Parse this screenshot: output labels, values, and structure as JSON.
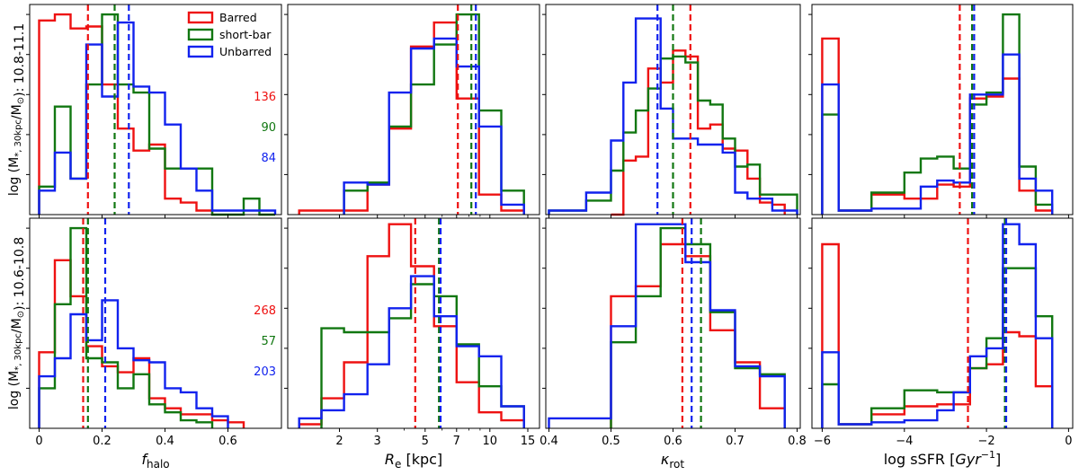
{
  "colors": {
    "barred": "#ee1111",
    "shortbar": "#117711",
    "unbarred": "#1122ee"
  },
  "legend": [
    {
      "key": "barred",
      "label": "Barred"
    },
    {
      "key": "shortbar",
      "label": "short-bar"
    },
    {
      "key": "unbarred",
      "label": "Unbarred"
    }
  ],
  "row_labels": [
    {
      "prefix": "log (M",
      "sub": "*, 30kpc",
      "mid": "/M",
      "sun": "⊙",
      "suffix": "): 10.8-11.1"
    },
    {
      "prefix": "log (M",
      "sub": "*, 30kpc",
      "mid": "/M",
      "sun": "⊙",
      "suffix": "): 10.6-10.8"
    }
  ],
  "column_xlabels": [
    {
      "main": "f",
      "sub": "halo",
      "rest": ""
    },
    {
      "main": "R",
      "sub": "e",
      "rest": " [kpc]"
    },
    {
      "main": "κ",
      "sub": "rot",
      "rest": ""
    },
    {
      "main": "log sSFR [",
      "italic": "Gyr",
      "sup": "−1",
      "rest": "]"
    }
  ],
  "chart_data": [
    {
      "type": "histogram",
      "row": 0,
      "col": 0,
      "xscale": "linear",
      "xlim": [
        -0.03,
        0.77
      ],
      "ylim": [
        0,
        1.05
      ],
      "counts": {
        "barred": "136",
        "shortbar": "90",
        "unbarred": "84"
      },
      "series": [
        {
          "key": "barred",
          "edges": [
            0,
            0.05,
            0.1,
            0.15,
            0.2,
            0.25,
            0.3,
            0.35,
            0.4,
            0.45,
            0.5,
            0.55
          ],
          "values": [
            0.97,
            1.0,
            0.93,
            0.94,
            0.65,
            0.43,
            0.32,
            0.35,
            0.08,
            0.06,
            0.02
          ],
          "median": 0.155
        },
        {
          "key": "shortbar",
          "edges": [
            0,
            0.05,
            0.1,
            0.15,
            0.2,
            0.25,
            0.3,
            0.35,
            0.4,
            0.45,
            0.5,
            0.55,
            0.6,
            0.65,
            0.7,
            0.75
          ],
          "values": [
            0.14,
            0.54,
            0.18,
            0.65,
            1.0,
            0.65,
            0.61,
            0.33,
            0.23,
            0.23,
            0.23,
            0.0,
            0.0,
            0.08,
            0.0
          ],
          "median": 0.24
        },
        {
          "key": "unbarred",
          "edges": [
            0,
            0.05,
            0.1,
            0.15,
            0.2,
            0.25,
            0.3,
            0.35,
            0.4,
            0.45,
            0.5,
            0.55,
            0.6,
            0.65,
            0.7,
            0.75
          ],
          "values": [
            0.12,
            0.31,
            0.18,
            0.85,
            0.59,
            0.96,
            0.64,
            0.61,
            0.45,
            0.23,
            0.12,
            0.02,
            0.02,
            0.02,
            0.02
          ],
          "median": 0.285
        }
      ]
    },
    {
      "type": "histogram",
      "row": 0,
      "col": 1,
      "xscale": "log",
      "xlim": [
        1.15,
        17
      ],
      "series": [
        {
          "key": "barred",
          "edges": [
            1.3,
            1.65,
            2.1,
            2.7,
            3.4,
            4.3,
            5.5,
            7.0,
            8.9,
            11.3,
            14.4
          ],
          "values": [
            0.02,
            0.02,
            0.02,
            0.15,
            0.43,
            0.84,
            0.96,
            0.58,
            0.1,
            0.02
          ],
          "median": 7.1
        },
        {
          "key": "shortbar",
          "edges": [
            2.1,
            2.7,
            3.4,
            4.3,
            5.5,
            7.0,
            8.9,
            11.3,
            14.4
          ],
          "values": [
            0.12,
            0.16,
            0.44,
            0.65,
            0.85,
            1.0,
            0.52,
            0.12
          ],
          "median": 8.2
        },
        {
          "key": "unbarred",
          "edges": [
            2.1,
            2.7,
            3.4,
            4.3,
            5.5,
            7.0,
            8.9,
            11.3,
            14.4
          ],
          "values": [
            0.16,
            0.15,
            0.61,
            0.83,
            0.88,
            0.74,
            0.44,
            0.05
          ],
          "median": 8.6
        }
      ]
    },
    {
      "type": "histogram",
      "row": 0,
      "col": 2,
      "xlim": [
        0.395,
        0.805
      ],
      "series": [
        {
          "key": "barred",
          "edges": [
            0.5,
            0.52,
            0.54,
            0.56,
            0.58,
            0.6,
            0.62,
            0.64,
            0.66,
            0.68,
            0.7,
            0.72,
            0.74,
            0.76,
            0.78
          ],
          "values": [
            0.0,
            0.27,
            0.29,
            0.73,
            0.66,
            0.82,
            0.79,
            0.43,
            0.45,
            0.33,
            0.32,
            0.18,
            0.06,
            0.05
          ],
          "median": 0.628
        },
        {
          "key": "shortbar",
          "edges": [
            0.4,
            0.42,
            0.44,
            0.46,
            0.48,
            0.5,
            0.52,
            0.54,
            0.56,
            0.58,
            0.6,
            0.62,
            0.64,
            0.66,
            0.68,
            0.7,
            0.72,
            0.74,
            0.76,
            0.78,
            0.8
          ],
          "values": [
            0.02,
            0.02,
            0.02,
            0.07,
            0.07,
            0.22,
            0.41,
            0.52,
            0.63,
            0.78,
            0.79,
            0.76,
            0.57,
            0.55,
            0.38,
            0.24,
            0.25,
            0.1,
            0.1,
            0.1
          ],
          "median": 0.6
        },
        {
          "key": "unbarred",
          "edges": [
            0.4,
            0.42,
            0.44,
            0.46,
            0.48,
            0.5,
            0.52,
            0.54,
            0.56,
            0.58,
            0.6,
            0.62,
            0.64,
            0.66,
            0.68,
            0.7,
            0.72,
            0.74,
            0.76,
            0.78,
            0.8
          ],
          "values": [
            0.02,
            0.02,
            0.02,
            0.11,
            0.11,
            0.37,
            0.66,
            0.98,
            0.98,
            0.53,
            0.38,
            0.38,
            0.35,
            0.35,
            0.31,
            0.11,
            0.08,
            0.08,
            0.02,
            0.02
          ],
          "median": 0.575
        }
      ]
    },
    {
      "type": "histogram",
      "row": 0,
      "col": 3,
      "xlim": [
        -6.25,
        0.1
      ],
      "series": [
        {
          "key": "barred",
          "edges": [
            -6.0,
            -5.6,
            -5.2,
            -4.8,
            -4.4,
            -4.0,
            -3.6,
            -3.2,
            -2.8,
            -2.4,
            -2.0,
            -1.6,
            -1.2,
            -0.8,
            -0.4
          ],
          "values": [
            0.88,
            0.02,
            0.02,
            0.1,
            0.1,
            0.08,
            0.08,
            0.15,
            0.14,
            0.58,
            0.59,
            0.68,
            0.12,
            0.02
          ],
          "median": -2.65
        },
        {
          "key": "shortbar",
          "edges": [
            -6.0,
            -5.6,
            -5.2,
            -4.8,
            -4.4,
            -4.0,
            -3.6,
            -3.2,
            -2.8,
            -2.4,
            -2.0,
            -1.6,
            -1.2,
            -0.8,
            -0.4
          ],
          "values": [
            0.5,
            0.02,
            0.02,
            0.11,
            0.11,
            0.21,
            0.28,
            0.29,
            0.23,
            0.55,
            0.61,
            1.0,
            0.24,
            0.05
          ],
          "median": -2.35
        },
        {
          "key": "unbarred",
          "edges": [
            -6.0,
            -5.6,
            -5.2,
            -4.8,
            -4.4,
            -4.0,
            -3.6,
            -3.2,
            -2.8,
            -2.4,
            -2.0,
            -1.6,
            -1.2,
            -0.8,
            -0.4
          ],
          "values": [
            0.65,
            0.02,
            0.02,
            0.03,
            0.03,
            0.03,
            0.14,
            0.17,
            0.16,
            0.6,
            0.6,
            0.8,
            0.18,
            0.12
          ],
          "median": -2.3
        }
      ]
    },
    {
      "type": "histogram",
      "row": 1,
      "col": 0,
      "xlim": [
        -0.03,
        0.77
      ],
      "ticks": [
        0.0,
        0.2,
        0.4,
        0.6
      ],
      "counts": {
        "barred": "268",
        "shortbar": "57",
        "unbarred": "203"
      },
      "series": [
        {
          "key": "barred",
          "edges": [
            0,
            0.05,
            0.1,
            0.15,
            0.2,
            0.25,
            0.3,
            0.35,
            0.4,
            0.45,
            0.5,
            0.55,
            0.6,
            0.65
          ],
          "values": [
            0.38,
            0.84,
            0.66,
            0.41,
            0.31,
            0.28,
            0.35,
            0.15,
            0.1,
            0.07,
            0.07,
            0.04,
            0.03
          ],
          "median": 0.14
        },
        {
          "key": "shortbar",
          "edges": [
            0,
            0.05,
            0.1,
            0.15,
            0.2,
            0.25,
            0.3,
            0.35,
            0.4,
            0.45,
            0.5,
            0.55
          ],
          "values": [
            0.2,
            0.62,
            1.0,
            0.35,
            0.33,
            0.2,
            0.27,
            0.12,
            0.08,
            0.04,
            0.03
          ],
          "median": 0.155
        },
        {
          "key": "unbarred",
          "edges": [
            0,
            0.05,
            0.1,
            0.15,
            0.2,
            0.25,
            0.3,
            0.35,
            0.4,
            0.45,
            0.5,
            0.55,
            0.6
          ],
          "values": [
            0.26,
            0.35,
            0.57,
            0.44,
            0.64,
            0.4,
            0.34,
            0.33,
            0.2,
            0.18,
            0.1,
            0.06
          ],
          "median": 0.21
        }
      ]
    },
    {
      "type": "histogram",
      "row": 1,
      "col": 1,
      "xscale": "log",
      "xlim": [
        1.15,
        17
      ],
      "ticks": [
        2,
        3,
        5,
        7,
        10,
        15
      ],
      "series": [
        {
          "key": "barred",
          "edges": [
            1.3,
            1.65,
            2.1,
            2.7,
            3.4,
            4.3,
            5.5,
            7.0,
            8.9,
            11.3,
            14.4
          ],
          "values": [
            0.02,
            0.15,
            0.33,
            0.86,
            1.02,
            0.81,
            0.51,
            0.23,
            0.08,
            0.04
          ],
          "median": 4.5
        },
        {
          "key": "shortbar",
          "edges": [
            1.65,
            2.1,
            2.7,
            3.4,
            4.3,
            5.5,
            7.0,
            8.9,
            11.3,
            14.4
          ],
          "values": [
            0.5,
            0.48,
            0.48,
            0.55,
            0.72,
            0.66,
            0.42,
            0.21,
            0.11
          ],
          "median": 5.8
        },
        {
          "key": "unbarred",
          "edges": [
            1.3,
            1.65,
            2.1,
            2.7,
            3.4,
            4.3,
            5.5,
            7.0,
            8.9,
            11.3,
            14.4
          ],
          "values": [
            0.05,
            0.09,
            0.17,
            0.32,
            0.6,
            0.76,
            0.56,
            0.41,
            0.36,
            0.11
          ],
          "median": 5.9
        }
      ]
    },
    {
      "type": "histogram",
      "row": 1,
      "col": 2,
      "xlim": [
        0.395,
        0.805
      ],
      "ticks": [
        0.4,
        0.5,
        0.6,
        0.7,
        0.8
      ],
      "series": [
        {
          "key": "barred",
          "edges": [
            0.5,
            0.52,
            0.54,
            0.56,
            0.58,
            0.6,
            0.62,
            0.64,
            0.66,
            0.68,
            0.7,
            0.72,
            0.74,
            0.76,
            0.78
          ],
          "values": [
            0.66,
            0.66,
            0.71,
            0.71,
            0.92,
            0.92,
            0.86,
            0.86,
            0.49,
            0.49,
            0.33,
            0.33,
            0.1,
            0.1
          ],
          "median": 0.615
        },
        {
          "key": "shortbar",
          "edges": [
            0.5,
            0.52,
            0.54,
            0.56,
            0.58,
            0.6,
            0.62,
            0.64,
            0.66,
            0.68,
            0.7,
            0.72,
            0.74,
            0.76,
            0.78
          ],
          "values": [
            0.43,
            0.43,
            0.66,
            0.66,
            1.0,
            1.0,
            0.92,
            0.92,
            0.58,
            0.58,
            0.3,
            0.3,
            0.27,
            0.27
          ],
          "median": 0.645
        },
        {
          "key": "unbarred",
          "edges": [
            0.4,
            0.42,
            0.44,
            0.46,
            0.48,
            0.5,
            0.52,
            0.54,
            0.56,
            0.58,
            0.6,
            0.62,
            0.64,
            0.66,
            0.68,
            0.7,
            0.72,
            0.74,
            0.76,
            0.78
          ],
          "values": [
            0.05,
            0.05,
            0.05,
            0.05,
            0.05,
            0.51,
            0.51,
            1.02,
            1.02,
            1.02,
            1.02,
            0.83,
            0.83,
            0.59,
            0.59,
            0.31,
            0.31,
            0.26,
            0.26
          ],
          "median": 0.63
        }
      ]
    },
    {
      "type": "histogram",
      "row": 1,
      "col": 3,
      "xlim": [
        -6.25,
        0.1
      ],
      "ticks": [
        -6,
        -4,
        -2,
        0
      ],
      "tick_labels": [
        "−6",
        "−4",
        "−2",
        "0"
      ],
      "series": [
        {
          "key": "barred",
          "edges": [
            -6.0,
            -5.6,
            -5.2,
            -4.8,
            -4.4,
            -4.0,
            -3.6,
            -3.2,
            -2.8,
            -2.4,
            -2.0,
            -1.6,
            -1.2,
            -0.8,
            -0.4
          ],
          "values": [
            0.92,
            0.02,
            0.02,
            0.07,
            0.07,
            0.11,
            0.11,
            0.12,
            0.12,
            0.3,
            0.32,
            0.48,
            0.46,
            0.21
          ],
          "median": -2.45
        },
        {
          "key": "shortbar",
          "edges": [
            -6.0,
            -5.6,
            -5.2,
            -4.8,
            -4.4,
            -4.0,
            -3.6,
            -3.2,
            -2.8,
            -2.4,
            -2.0,
            -1.6,
            -1.2,
            -0.8,
            -0.4
          ],
          "values": [
            0.22,
            0.02,
            0.02,
            0.1,
            0.1,
            0.19,
            0.19,
            0.18,
            0.18,
            0.3,
            0.45,
            0.8,
            0.8,
            0.56
          ],
          "median": -1.55
        },
        {
          "key": "unbarred",
          "edges": [
            -6.0,
            -5.6,
            -5.2,
            -4.8,
            -4.4,
            -4.0,
            -3.6,
            -3.2,
            -2.8,
            -2.4,
            -2.0,
            -1.6,
            -1.2,
            -0.8,
            -0.4
          ],
          "values": [
            0.38,
            0.02,
            0.02,
            0.03,
            0.03,
            0.04,
            0.04,
            0.09,
            0.18,
            0.36,
            0.4,
            1.02,
            0.92,
            0.45
          ],
          "median": -1.52
        }
      ]
    }
  ]
}
